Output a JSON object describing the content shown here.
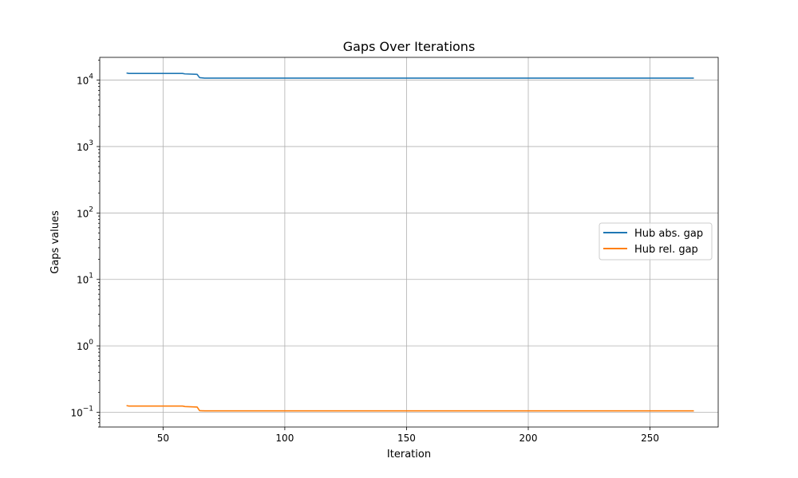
{
  "chart_data": {
    "type": "line",
    "title": "Gaps Over Iterations",
    "xlabel": "Iteration",
    "ylabel": "Gaps values",
    "yscale": "log",
    "xlim": [
      24,
      278
    ],
    "ylim": [
      0.06,
      22000
    ],
    "grid": true,
    "legend_position": "center-right",
    "x_ticks": [
      50,
      100,
      150,
      200,
      250
    ],
    "y_ticks": [
      {
        "value": 0.1,
        "base": "10",
        "exp": "−1"
      },
      {
        "value": 1,
        "base": "10",
        "exp": "0"
      },
      {
        "value": 10,
        "base": "10",
        "exp": "1"
      },
      {
        "value": 100,
        "base": "10",
        "exp": "2"
      },
      {
        "value": 1000,
        "base": "10",
        "exp": "3"
      },
      {
        "value": 10000,
        "base": "10",
        "exp": "4"
      }
    ],
    "series": [
      {
        "name": "Hub abs. gap",
        "color": "#1f77b4",
        "points": [
          [
            35,
            12800
          ],
          [
            36,
            12600
          ],
          [
            58,
            12600
          ],
          [
            59,
            12400
          ],
          [
            64,
            12200
          ],
          [
            65,
            10900
          ],
          [
            67,
            10700
          ],
          [
            268,
            10700
          ]
        ]
      },
      {
        "name": "Hub rel. gap",
        "color": "#ff7f0e",
        "points": [
          [
            35,
            0.126
          ],
          [
            36,
            0.124
          ],
          [
            58,
            0.124
          ],
          [
            59,
            0.122
          ],
          [
            64,
            0.12
          ],
          [
            65,
            0.106
          ],
          [
            67,
            0.105
          ],
          [
            268,
            0.105
          ]
        ]
      }
    ]
  }
}
